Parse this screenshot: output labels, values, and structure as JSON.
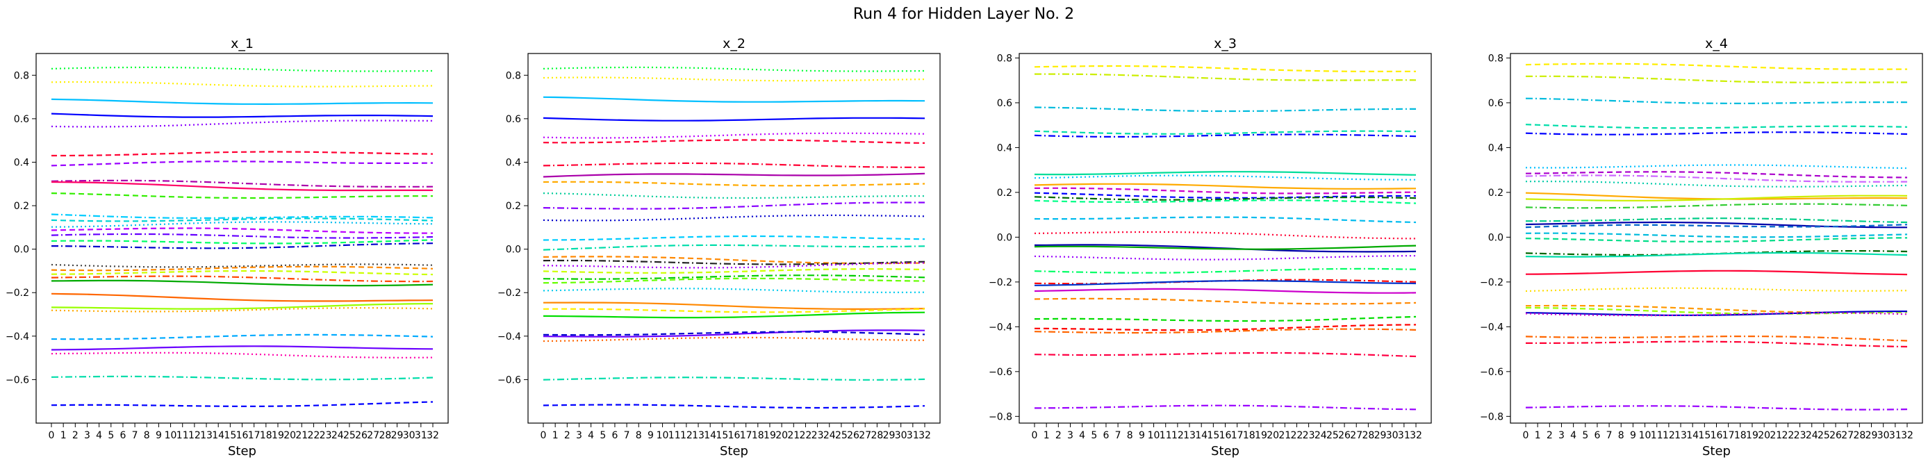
{
  "figure": {
    "suptitle": "Run 4 for Hidden Layer No. 2"
  },
  "chart_data": [
    {
      "type": "line",
      "title": "x_1",
      "xlabel": "Step",
      "ylabel": "",
      "ylim": [
        -0.8,
        0.9
      ],
      "xticks": [
        "0",
        "1",
        "2",
        "3",
        "4",
        "5",
        "6",
        "7",
        "8",
        "9",
        "10",
        "11",
        "12",
        "13",
        "14",
        "15",
        "16",
        "17",
        "18",
        "19",
        "20",
        "21",
        "22",
        "23",
        "24",
        "25",
        "26",
        "27",
        "28",
        "29",
        "30",
        "31",
        "32"
      ],
      "yticks": [
        "-0.6",
        "-0.4",
        "-0.2",
        "0.0",
        "0.2",
        "0.4",
        "0.6",
        "0.8"
      ],
      "series": [
        {
          "color": "#00ff33",
          "style": "dotted",
          "start": 0.83,
          "end": 0.82
        },
        {
          "color": "#ffee00",
          "style": "dotted",
          "start": 0.76,
          "end": 0.75
        },
        {
          "color": "#00bfff",
          "style": "solid",
          "start": 0.68,
          "end": 0.67
        },
        {
          "color": "#0000ff",
          "style": "solid",
          "start": 0.62,
          "end": 0.61
        },
        {
          "color": "#8a00ff",
          "style": "dotted",
          "start": 0.57,
          "end": 0.59
        },
        {
          "color": "#ff0033",
          "style": "dashed",
          "start": 0.44,
          "end": 0.44
        },
        {
          "color": "#9900ff",
          "style": "dashed",
          "start": 0.39,
          "end": 0.4
        },
        {
          "color": "#aa00aa",
          "style": "dashdot",
          "start": 0.31,
          "end": 0.29
        },
        {
          "color": "#ff0066",
          "style": "solid",
          "start": 0.3,
          "end": 0.27
        },
        {
          "color": "#33ee00",
          "style": "dashed",
          "start": 0.25,
          "end": 0.24
        },
        {
          "color": "#00ccff",
          "style": "dashdot",
          "start": 0.16,
          "end": 0.14
        },
        {
          "color": "#00d4d4",
          "style": "dashed",
          "start": 0.14,
          "end": 0.13
        },
        {
          "color": "#00bbee",
          "style": "dotted",
          "start": 0.11,
          "end": 0.12
        },
        {
          "color": "#bb00ff",
          "style": "dashed",
          "start": 0.09,
          "end": 0.08
        },
        {
          "color": "#6600ff",
          "style": "dashdot",
          "start": 0.06,
          "end": 0.06
        },
        {
          "color": "#00ff66",
          "style": "dashed",
          "start": 0.03,
          "end": 0.04
        },
        {
          "color": "#0000cc",
          "style": "dashdot",
          "start": 0.01,
          "end": 0.02
        },
        {
          "color": "#444444",
          "style": "dotted",
          "start": -0.07,
          "end": -0.08
        },
        {
          "color": "#ff8800",
          "style": "dashed",
          "start": -0.09,
          "end": -0.09
        },
        {
          "color": "#ccff00",
          "style": "dashed",
          "start": -0.11,
          "end": -0.11
        },
        {
          "color": "#ff4400",
          "style": "dashdot",
          "start": -0.13,
          "end": -0.14
        },
        {
          "color": "#00aa00",
          "style": "solid",
          "start": -0.15,
          "end": -0.16
        },
        {
          "color": "#ff6600",
          "style": "solid",
          "start": -0.21,
          "end": -0.24
        },
        {
          "color": "#99ff00",
          "style": "solid",
          "start": -0.27,
          "end": -0.26
        },
        {
          "color": "#ffaa00",
          "style": "dotted",
          "start": -0.28,
          "end": -0.28
        },
        {
          "color": "#00aaff",
          "style": "dashed",
          "start": -0.41,
          "end": -0.4
        },
        {
          "color": "#6a00ff",
          "style": "solid",
          "start": -0.46,
          "end": -0.45
        },
        {
          "color": "#ff00aa",
          "style": "dotted",
          "start": -0.48,
          "end": -0.49
        },
        {
          "color": "#00ddaa",
          "style": "dashdot",
          "start": -0.59,
          "end": -0.59
        },
        {
          "color": "#0000ff",
          "style": "dashed",
          "start": -0.72,
          "end": -0.71
        }
      ]
    },
    {
      "type": "line",
      "title": "x_2",
      "xlabel": "Step",
      "ylabel": "",
      "ylim": [
        -0.8,
        0.9
      ],
      "xticks": [
        "0",
        "1",
        "2",
        "3",
        "4",
        "5",
        "6",
        "7",
        "8",
        "9",
        "10",
        "11",
        "12",
        "13",
        "14",
        "15",
        "16",
        "17",
        "18",
        "19",
        "20",
        "21",
        "22",
        "23",
        "24",
        "25",
        "26",
        "27",
        "28",
        "29",
        "30",
        "31",
        "32"
      ],
      "yticks": [
        "-0.6",
        "-0.4",
        "-0.2",
        "0.0",
        "0.2",
        "0.4",
        "0.6",
        "0.8"
      ],
      "series": [
        {
          "color": "#00ff33",
          "style": "dotted",
          "start": 0.83,
          "end": 0.82
        },
        {
          "color": "#ffee00",
          "style": "dotted",
          "start": 0.78,
          "end": 0.78
        },
        {
          "color": "#00bfff",
          "style": "solid",
          "start": 0.69,
          "end": 0.68
        },
        {
          "color": "#0000ff",
          "style": "solid",
          "start": 0.6,
          "end": 0.6
        },
        {
          "color": "#bb00ff",
          "style": "dotted",
          "start": 0.52,
          "end": 0.53
        },
        {
          "color": "#ff0033",
          "style": "dashed",
          "start": 0.5,
          "end": 0.49
        },
        {
          "color": "#ff0033",
          "style": "dashdot",
          "start": 0.39,
          "end": 0.38
        },
        {
          "color": "#aa00aa",
          "style": "solid",
          "start": 0.33,
          "end": 0.35
        },
        {
          "color": "#ffaa00",
          "style": "dashed",
          "start": 0.3,
          "end": 0.3
        },
        {
          "color": "#00cc99",
          "style": "dotted",
          "start": 0.25,
          "end": 0.24
        },
        {
          "color": "#8800ff",
          "style": "dashdot",
          "start": 0.19,
          "end": 0.21
        },
        {
          "color": "#0000cc",
          "style": "dotted",
          "start": 0.14,
          "end": 0.15
        },
        {
          "color": "#00ccff",
          "style": "dashed",
          "start": 0.05,
          "end": 0.05
        },
        {
          "color": "#00ddaa",
          "style": "dashdot",
          "start": 0.0,
          "end": 0.02
        },
        {
          "color": "#ff8800",
          "style": "dashed",
          "start": -0.04,
          "end": -0.06
        },
        {
          "color": "#222222",
          "style": "dashdot",
          "start": -0.06,
          "end": -0.06
        },
        {
          "color": "#aa00ff",
          "style": "dotted",
          "start": -0.08,
          "end": -0.07
        },
        {
          "color": "#ccff00",
          "style": "dashed",
          "start": -0.1,
          "end": -0.1
        },
        {
          "color": "#00cc00",
          "style": "dashdot",
          "start": -0.13,
          "end": -0.13
        },
        {
          "color": "#66ff00",
          "style": "dashed",
          "start": -0.15,
          "end": -0.14
        },
        {
          "color": "#00ccee",
          "style": "dotted",
          "start": -0.19,
          "end": -0.19
        },
        {
          "color": "#ff8800",
          "style": "solid",
          "start": -0.25,
          "end": -0.27
        },
        {
          "color": "#ffee00",
          "style": "dashed",
          "start": -0.28,
          "end": -0.28
        },
        {
          "color": "#00dd00",
          "style": "solid",
          "start": -0.31,
          "end": -0.3
        },
        {
          "color": "#6a00ff",
          "style": "solid",
          "start": -0.4,
          "end": -0.38
        },
        {
          "color": "#0000cc",
          "style": "dashed",
          "start": -0.39,
          "end": -0.39
        },
        {
          "color": "#ff6600",
          "style": "dotted",
          "start": -0.42,
          "end": -0.41
        },
        {
          "color": "#00ddaa",
          "style": "dashdot",
          "start": -0.6,
          "end": -0.59
        },
        {
          "color": "#0000ff",
          "style": "dashed",
          "start": -0.72,
          "end": -0.72
        }
      ]
    },
    {
      "type": "line",
      "title": "x_3",
      "xlabel": "Step",
      "ylabel": "",
      "ylim": [
        -0.83,
        0.82
      ],
      "xticks": [
        "0",
        "1",
        "2",
        "3",
        "4",
        "5",
        "6",
        "7",
        "8",
        "9",
        "10",
        "11",
        "12",
        "13",
        "14",
        "15",
        "16",
        "17",
        "18",
        "19",
        "20",
        "21",
        "22",
        "23",
        "24",
        "25",
        "26",
        "27",
        "28",
        "29",
        "30",
        "31",
        "32"
      ],
      "yticks": [
        "-0.8",
        "-0.6",
        "-0.4",
        "-0.2",
        "0.0",
        "0.2",
        "0.4",
        "0.6",
        "0.8"
      ],
      "series": [
        {
          "color": "#ffee00",
          "style": "dashed",
          "start": 0.76,
          "end": 0.74
        },
        {
          "color": "#ccee00",
          "style": "dashdot",
          "start": 0.72,
          "end": 0.7
        },
        {
          "color": "#00bbdd",
          "style": "dashdot",
          "start": 0.57,
          "end": 0.57
        },
        {
          "color": "#00ddaa",
          "style": "dashed",
          "start": 0.47,
          "end": 0.47
        },
        {
          "color": "#0000ff",
          "style": "dashdot",
          "start": 0.46,
          "end": 0.45
        },
        {
          "color": "#00dd99",
          "style": "solid",
          "start": 0.29,
          "end": 0.28
        },
        {
          "color": "#00bfff",
          "style": "dotted",
          "start": 0.27,
          "end": 0.26
        },
        {
          "color": "#ffaa00",
          "style": "solid",
          "start": 0.23,
          "end": 0.22
        },
        {
          "color": "#cc00cc",
          "style": "dashed",
          "start": 0.21,
          "end": 0.2
        },
        {
          "color": "#0000ff",
          "style": "dashed",
          "start": 0.19,
          "end": 0.18
        },
        {
          "color": "#006600",
          "style": "dashdot",
          "start": 0.18,
          "end": 0.17
        },
        {
          "color": "#00ff88",
          "style": "dashed",
          "start": 0.17,
          "end": 0.15
        },
        {
          "color": "#00bbee",
          "style": "dashed",
          "start": 0.09,
          "end": 0.07
        },
        {
          "color": "#ff0033",
          "style": "dotted",
          "start": 0.02,
          "end": 0.0
        },
        {
          "color": "#0000aa",
          "style": "solid",
          "start": -0.04,
          "end": -0.06
        },
        {
          "color": "#00aa00",
          "style": "solid",
          "start": -0.05,
          "end": -0.04
        },
        {
          "color": "#9900ff",
          "style": "dotted",
          "start": -0.09,
          "end": -0.09
        },
        {
          "color": "#00ff66",
          "style": "dashdot",
          "start": -0.15,
          "end": -0.15
        },
        {
          "color": "#ff0000",
          "style": "dashdot",
          "start": -0.2,
          "end": -0.2
        },
        {
          "color": "#0033cc",
          "style": "solid",
          "start": -0.21,
          "end": -0.2
        },
        {
          "color": "#cc00cc",
          "style": "solid",
          "start": -0.24,
          "end": -0.24
        },
        {
          "color": "#ff8800",
          "style": "dashed",
          "start": -0.28,
          "end": -0.29
        },
        {
          "color": "#00dd00",
          "style": "dashed",
          "start": -0.37,
          "end": -0.36
        },
        {
          "color": "#ff0000",
          "style": "dashed",
          "start": -0.41,
          "end": -0.4
        },
        {
          "color": "#ff6600",
          "style": "dashdot",
          "start": -0.42,
          "end": -0.42
        },
        {
          "color": "#ff0044",
          "style": "dashdot",
          "start": -0.52,
          "end": -0.53
        },
        {
          "color": "#9900ff",
          "style": "dashdot",
          "start": -0.76,
          "end": -0.76
        }
      ]
    },
    {
      "type": "line",
      "title": "x_4",
      "xlabel": "Step",
      "ylabel": "",
      "ylim": [
        -0.83,
        0.82
      ],
      "xticks": [
        "0",
        "1",
        "2",
        "3",
        "4",
        "5",
        "6",
        "7",
        "8",
        "9",
        "10",
        "11",
        "12",
        "13",
        "14",
        "15",
        "16",
        "17",
        "18",
        "19",
        "20",
        "21",
        "22",
        "23",
        "24",
        "25",
        "26",
        "27",
        "28",
        "29",
        "30",
        "31",
        "32"
      ],
      "yticks": [
        "-0.8",
        "-0.6",
        "-0.4",
        "-0.2",
        "0.0",
        "0.2",
        "0.4",
        "0.6",
        "0.8"
      ],
      "series": [
        {
          "color": "#ffee00",
          "style": "dashed",
          "start": 0.77,
          "end": 0.75
        },
        {
          "color": "#ccee00",
          "style": "dashdot",
          "start": 0.71,
          "end": 0.69
        },
        {
          "color": "#00bbdd",
          "style": "dashdot",
          "start": 0.61,
          "end": 0.6
        },
        {
          "color": "#00ddaa",
          "style": "dashed",
          "start": 0.5,
          "end": 0.49
        },
        {
          "color": "#0000ff",
          "style": "dashdot",
          "start": 0.47,
          "end": 0.46
        },
        {
          "color": "#00bfff",
          "style": "dotted",
          "start": 0.32,
          "end": 0.31
        },
        {
          "color": "#aa00cc",
          "style": "dashed",
          "start": 0.29,
          "end": 0.27
        },
        {
          "color": "#cc66ff",
          "style": "dashdot",
          "start": 0.27,
          "end": 0.25
        },
        {
          "color": "#00ccaa",
          "style": "dotted",
          "start": 0.24,
          "end": 0.23
        },
        {
          "color": "#ffaa00",
          "style": "solid",
          "start": 0.19,
          "end": 0.17
        },
        {
          "color": "#ccee00",
          "style": "solid",
          "start": 0.17,
          "end": 0.18
        },
        {
          "color": "#33cc33",
          "style": "dashdot",
          "start": 0.14,
          "end": 0.14
        },
        {
          "color": "#00cc88",
          "style": "dashdot",
          "start": 0.08,
          "end": 0.07
        },
        {
          "color": "#0000aa",
          "style": "solid",
          "start": 0.06,
          "end": 0.05
        },
        {
          "color": "#0066cc",
          "style": "dashed",
          "start": 0.04,
          "end": 0.06
        },
        {
          "color": "#00bbdd",
          "style": "dashed",
          "start": 0.01,
          "end": 0.01
        },
        {
          "color": "#00dd88",
          "style": "dashed",
          "start": -0.01,
          "end": -0.01
        },
        {
          "color": "#006600",
          "style": "dashdot",
          "start": -0.07,
          "end": -0.07
        },
        {
          "color": "#00ddaa",
          "style": "solid",
          "start": -0.08,
          "end": -0.08
        },
        {
          "color": "#ff0033",
          "style": "solid",
          "start": -0.16,
          "end": -0.16
        },
        {
          "color": "#ffdd00",
          "style": "dotted",
          "start": -0.24,
          "end": -0.23
        },
        {
          "color": "#ff9900",
          "style": "dashed",
          "start": -0.31,
          "end": -0.33
        },
        {
          "color": "#99ff00",
          "style": "dashed",
          "start": -0.32,
          "end": -0.34
        },
        {
          "color": "#0000cc",
          "style": "solid",
          "start": -0.34,
          "end": -0.34
        },
        {
          "color": "#cc00cc",
          "style": "dotted",
          "start": -0.34,
          "end": -0.35
        },
        {
          "color": "#ff6600",
          "style": "dashdot",
          "start": -0.44,
          "end": -0.46
        },
        {
          "color": "#ff0033",
          "style": "dashdot",
          "start": -0.47,
          "end": -0.48
        },
        {
          "color": "#9900ff",
          "style": "dashdot",
          "start": -0.76,
          "end": -0.76
        }
      ]
    }
  ]
}
